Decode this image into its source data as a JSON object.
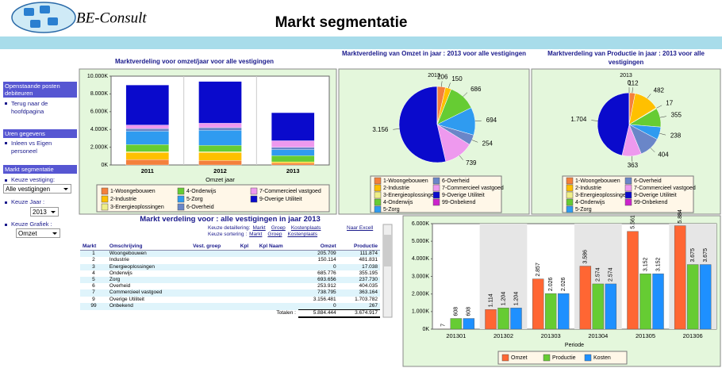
{
  "header": {
    "logo": "BE-Consult",
    "title": "Markt segmentatie"
  },
  "sidebar": {
    "sections": [
      {
        "title": "Openstaande posten debiteuren",
        "links": [
          "Terug naar de hoofdpagina"
        ]
      },
      {
        "title": "Uren gegevens",
        "links": [
          "Inleen vs Eigen personeel"
        ]
      },
      {
        "title": "Markt segmentatie",
        "filters": [
          {
            "label": "Keuze vestiging:",
            "value": "Alle vestigingen"
          },
          {
            "label": "Keuze Jaar :",
            "value": "2013"
          },
          {
            "label": "Keuze Grafiek :",
            "value": "Omzet"
          }
        ]
      }
    ]
  },
  "table": {
    "title": "Markt verdeling voor : alle vestigingen in jaar 2013",
    "detail_label": "Keuze detaillering:",
    "detail_links": [
      "Markt",
      "Groep",
      "Kostenplaats"
    ],
    "export": "Naar Excell",
    "sort_label": "Keuze sortering :",
    "sort_links": [
      "Markt",
      "Groep",
      "Kostenplaats"
    ],
    "columns": [
      "Markt",
      "Omschrijving",
      "Vest. groep",
      "Kpl",
      "Kpl Naam",
      "Omzet",
      "Productie"
    ],
    "rows": [
      {
        "markt": "1",
        "omschrijving": "Woongebouwen",
        "omzet": "205.709",
        "productie": "111.874"
      },
      {
        "markt": "2",
        "omschrijving": "Industrie",
        "omzet": "150.114",
        "productie": "481.831"
      },
      {
        "markt": "3",
        "omschrijving": "Energieoplossingen",
        "omzet": "0",
        "productie": "17.038"
      },
      {
        "markt": "4",
        "omschrijving": "Onderwijs",
        "omzet": "685.776",
        "productie": "355.195"
      },
      {
        "markt": "5",
        "omschrijving": "Zorg",
        "omzet": "693.656",
        "productie": "237.730"
      },
      {
        "markt": "6",
        "omschrijving": "Overheid",
        "omzet": "253.912",
        "productie": "404.035"
      },
      {
        "markt": "7",
        "omschrijving": "Commercieel vastgoed",
        "omzet": "738.795",
        "productie": "363.164"
      },
      {
        "markt": "9",
        "omschrijving": "Overige Utiliteit",
        "omzet": "3.156.481",
        "productie": "1.703.782"
      },
      {
        "markt": "99",
        "omschrijving": "Onbekend",
        "omzet": "0",
        "productie": "267"
      }
    ],
    "totals": {
      "label": "Totalen :",
      "omzet": "5.884.444",
      "productie": "3.674.917"
    }
  },
  "chart_data": [
    {
      "type": "stacked-bar",
      "title": "Marktverdeling voor omzet/jaar voor alle vestigingen",
      "categories": [
        "2011",
        "2012",
        "2013"
      ],
      "x_label": "Omzet jaar",
      "ylim": [
        0,
        10000
      ],
      "yticks": [
        {
          "value": 0,
          "label": "0K"
        },
        {
          "value": 2000,
          "label": "2.000K"
        },
        {
          "value": 4000,
          "label": "4.000K"
        },
        {
          "value": 6000,
          "label": "6.000K"
        },
        {
          "value": 8000,
          "label": "8.000K"
        },
        {
          "value": 10000,
          "label": "10.000K"
        }
      ],
      "series": [
        {
          "name": "1-Woongebouwen",
          "color": "#f4803c",
          "values": [
            600,
            500,
            206
          ]
        },
        {
          "name": "2-Industrie",
          "color": "#ffc000",
          "values": [
            800,
            900,
            150
          ]
        },
        {
          "name": "3-Energieoplossingen",
          "color": "#eeee88",
          "values": [
            100,
            100,
            0
          ]
        },
        {
          "name": "4-Onderwijs",
          "color": "#66cc33",
          "values": [
            800,
            700,
            686
          ]
        },
        {
          "name": "5-Zorg",
          "color": "#2f9bf0",
          "values": [
            1500,
            1700,
            694
          ]
        },
        {
          "name": "6-Overheid",
          "color": "#6a86c8",
          "values": [
            300,
            300,
            254
          ]
        },
        {
          "name": "7-Commercieel vastgoed",
          "color": "#ee99ee",
          "values": [
            400,
            500,
            739
          ]
        },
        {
          "name": "9-Overige Utiliteit",
          "color": "#0a0acc",
          "values": [
            4500,
            4700,
            3156
          ]
        }
      ]
    },
    {
      "type": "pie",
      "title": "Marktverdeling van Omzet in jaar : 2013 voor alle vestigingen",
      "subtitle": "2013",
      "categories": [
        "1-Woongebouwen",
        "2-Industrie",
        "3-Energieoplossingen",
        "4-Onderwijs",
        "5-Zorg",
        "6-Overheid",
        "7-Commercieel vastgoed",
        "9-Overige Utiliteit",
        "99-Onbekend"
      ],
      "colors": [
        "#f4803c",
        "#ffc000",
        "#eeee88",
        "#66cc33",
        "#2f9bf0",
        "#6a86c8",
        "#ee99ee",
        "#0a0acc",
        "#cc22cc"
      ],
      "values": [
        206,
        150,
        0,
        686,
        694,
        254,
        739,
        3156,
        0
      ],
      "value_labels": [
        "206",
        "150",
        null,
        "686",
        "694",
        "254",
        "739",
        "3.156",
        null
      ]
    },
    {
      "type": "pie",
      "title": "Marktverdeling van Productie in jaar : 2013 voor alle vestigingen",
      "subtitle": "2013",
      "categories": [
        "1-Woongebouwen",
        "2-Industrie",
        "3-Energieoplossingen",
        "4-Onderwijs",
        "5-Zorg",
        "6-Overheid",
        "7-Commercieel vastgoed",
        "9-Overige Utiliteit",
        "99-Onbekend"
      ],
      "colors": [
        "#f4803c",
        "#ffc000",
        "#eeee88",
        "#66cc33",
        "#2f9bf0",
        "#6a86c8",
        "#ee99ee",
        "#0a0acc",
        "#cc22cc"
      ],
      "values": [
        112,
        482,
        17,
        355,
        238,
        404,
        363,
        1704,
        0
      ],
      "value_labels": [
        "112",
        "482",
        "17",
        "355",
        "238",
        "404",
        "363",
        "1.704",
        "0"
      ]
    },
    {
      "type": "grouped-bar",
      "categories": [
        "201301",
        "201302",
        "201303",
        "201304",
        "201305",
        "201306"
      ],
      "x_label": "Periode",
      "ylim": [
        0,
        6000
      ],
      "yticks": [
        {
          "value": 0,
          "label": "0K"
        },
        {
          "value": 1000,
          "label": "1.000K"
        },
        {
          "value": 2000,
          "label": "2.000K"
        },
        {
          "value": 3000,
          "label": "3.000K"
        },
        {
          "value": 4000,
          "label": "4.000K"
        },
        {
          "value": 5000,
          "label": "5.000K"
        },
        {
          "value": 6000,
          "label": "6.000K"
        }
      ],
      "series": [
        {
          "name": "Omzet",
          "color": "#ff6633",
          "values": [
            7,
            1114,
            2857,
            3586,
            5561,
            5884
          ],
          "value_labels": [
            "7",
            "1.114",
            "2.857",
            "3.586",
            "5.561",
            "5.884"
          ]
        },
        {
          "name": "Productie",
          "color": "#66cc33",
          "values": [
            608,
            1204,
            2026,
            2574,
            3152,
            3675
          ],
          "value_labels": [
            "608",
            "1.204",
            "2.026",
            "2.574",
            "3.152",
            "3.675"
          ]
        },
        {
          "name": "Kosten",
          "color": "#1e90ff",
          "values": [
            608,
            1204,
            2026,
            2574,
            3152,
            3675
          ],
          "value_labels": [
            "608",
            "1.204",
            "2.026",
            "2.574",
            "3.152",
            "3.675"
          ]
        }
      ]
    }
  ]
}
